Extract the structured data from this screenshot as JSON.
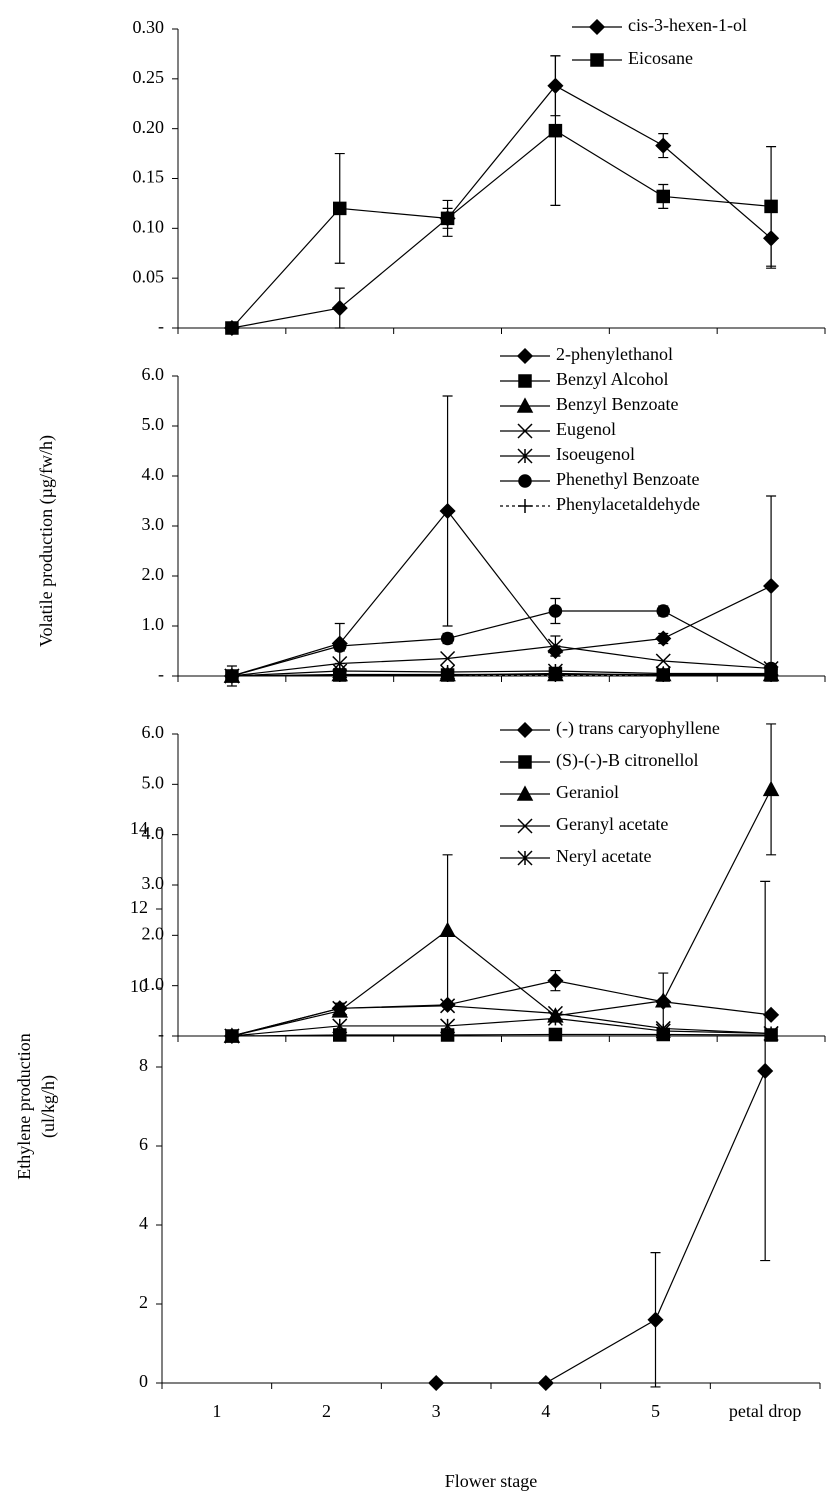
{
  "chart_data": [
    {
      "type": "line",
      "categories": [
        null,
        null,
        null,
        null,
        null,
        null
      ],
      "ylim": [
        0,
        0.3
      ],
      "yticks": [
        {
          "value": 0,
          "label": "-"
        },
        0.05,
        {
          "value": 0.1,
          "label": "0.10"
        },
        0.15,
        {
          "value": 0.2,
          "label": "0.20"
        },
        0.25,
        {
          "value": 0.3,
          "label": "0.30"
        }
      ],
      "legend": "upper right",
      "series": [
        {
          "name": "cis-3-hexen-1-ol",
          "color": "#000000",
          "marker": "diamond",
          "values": [
            0,
            0.02,
            0.11,
            0.243,
            0.183,
            0.09
          ],
          "errors": [
            null,
            0.02,
            0.01,
            0.03,
            0.012,
            0.03
          ]
        },
        {
          "name": "Eicosane",
          "color": "#000000",
          "marker": "square",
          "values": [
            0,
            0.12,
            0.11,
            0.198,
            0.132,
            0.122
          ],
          "errors": [
            null,
            0.055,
            0.018,
            0.075,
            0.012,
            0.06
          ]
        }
      ]
    },
    {
      "type": "line",
      "categories": [
        null,
        null,
        null,
        null,
        null,
        null
      ],
      "y_label": "Volatile production (µg/fw/h)",
      "ylim": [
        0,
        6
      ],
      "yticks": [
        {
          "value": 0,
          "label": "-"
        },
        {
          "value": 1,
          "label": "1.0"
        },
        {
          "value": 2,
          "label": "2.0"
        },
        {
          "value": 3,
          "label": "3.0"
        },
        {
          "value": 4,
          "label": "4.0"
        },
        {
          "value": 5,
          "label": "5.0"
        },
        {
          "value": 6,
          "label": "6.0"
        }
      ],
      "legend": "upper right",
      "series": [
        {
          "name": "2-phenylethanol",
          "color": "#000000",
          "marker": "diamond",
          "values": [
            0,
            0.65,
            3.3,
            0.5,
            0.75,
            1.8
          ],
          "errors": [
            0.2,
            0.4,
            2.3,
            0.1,
            0.1,
            1.8
          ]
        },
        {
          "name": "Benzyl Alcohol",
          "color": "#000000",
          "marker": "square",
          "values": [
            0,
            0.02,
            0.02,
            0.05,
            0.02,
            0.02
          ]
        },
        {
          "name": "Benzyl Benzoate",
          "color": "#000000",
          "marker": "triangle",
          "values": [
            0,
            0.03,
            0.03,
            0.03,
            0.03,
            0.03
          ]
        },
        {
          "name": "Eugenol",
          "color": "#000000",
          "marker": "x",
          "values": [
            0,
            0.25,
            0.35,
            0.6,
            0.3,
            0.15
          ],
          "errors": [
            null,
            null,
            null,
            0.2,
            null,
            null
          ]
        },
        {
          "name": "Isoeugenol",
          "color": "#000000",
          "marker": "star",
          "values": [
            0,
            0.1,
            0.08,
            0.1,
            0.05,
            0.05
          ]
        },
        {
          "name": "Phenethyl Benzoate",
          "color": "#000000",
          "marker": "circle",
          "values": [
            0,
            0.6,
            0.75,
            1.3,
            1.3,
            0.15
          ],
          "errors": [
            null,
            0.1,
            0.1,
            0.25,
            0.1,
            null
          ]
        },
        {
          "name": "Phenylacetaldehyde",
          "color": "#000000",
          "marker": "plus",
          "dash": "dotted",
          "values": [
            0,
            0.02,
            0.02,
            0.02,
            0.02,
            0.02
          ]
        }
      ]
    },
    {
      "type": "line",
      "categories": [
        null,
        null,
        null,
        null,
        null,
        null
      ],
      "ylim": [
        0,
        6
      ],
      "yticks": [
        {
          "value": 0,
          "label": "-"
        },
        {
          "value": 1,
          "label": "1.0"
        },
        {
          "value": 2,
          "label": "2.0"
        },
        {
          "value": 3,
          "label": "3.0"
        },
        {
          "value": 4,
          "label": "4.0"
        },
        {
          "value": 5,
          "label": "5.0"
        },
        {
          "value": 6,
          "label": "6.0"
        }
      ],
      "legend": "upper right",
      "series": [
        {
          "name": "(-) trans caryophyllene",
          "color": "#000000",
          "marker": "diamond",
          "values": [
            0,
            0.55,
            0.62,
            1.1,
            0.68,
            0.42
          ],
          "errors": [
            null,
            0.1,
            null,
            0.2,
            null,
            null
          ]
        },
        {
          "name": "(S)-(-)-B citronellol",
          "color": "#000000",
          "marker": "square",
          "values": [
            0,
            0.02,
            0.02,
            0.03,
            0.03,
            0.02
          ]
        },
        {
          "name": "Geraniol",
          "color": "#000000",
          "marker": "triangle",
          "values": [
            0,
            0.5,
            2.1,
            0.4,
            0.7,
            4.9
          ],
          "errors": [
            null,
            null,
            1.5,
            null,
            0.55,
            1.3
          ]
        },
        {
          "name": "Geranyl acetate",
          "color": "#000000",
          "marker": "x",
          "values": [
            0,
            0.55,
            0.6,
            0.45,
            0.15,
            0.05
          ]
        },
        {
          "name": "Neryl acetate",
          "color": "#000000",
          "marker": "star",
          "values": [
            0,
            0.2,
            0.2,
            0.35,
            0.1,
            0.05
          ]
        }
      ]
    },
    {
      "type": "line",
      "categories": [
        "1",
        "2",
        "3",
        "4",
        "5",
        "petal drop"
      ],
      "x_label": "Flower stage",
      "y_label": [
        "Ethylene production",
        "(ul/kg/h)"
      ],
      "ylim": [
        0,
        14
      ],
      "yticks": [
        0,
        2,
        4,
        6,
        8,
        10,
        12,
        14
      ],
      "series": [
        {
          "color": "#000000",
          "marker": "diamond",
          "values": [
            null,
            null,
            0,
            0,
            1.6,
            7.9
          ],
          "errors": [
            null,
            null,
            null,
            null,
            1.7,
            4.8
          ]
        }
      ]
    }
  ]
}
